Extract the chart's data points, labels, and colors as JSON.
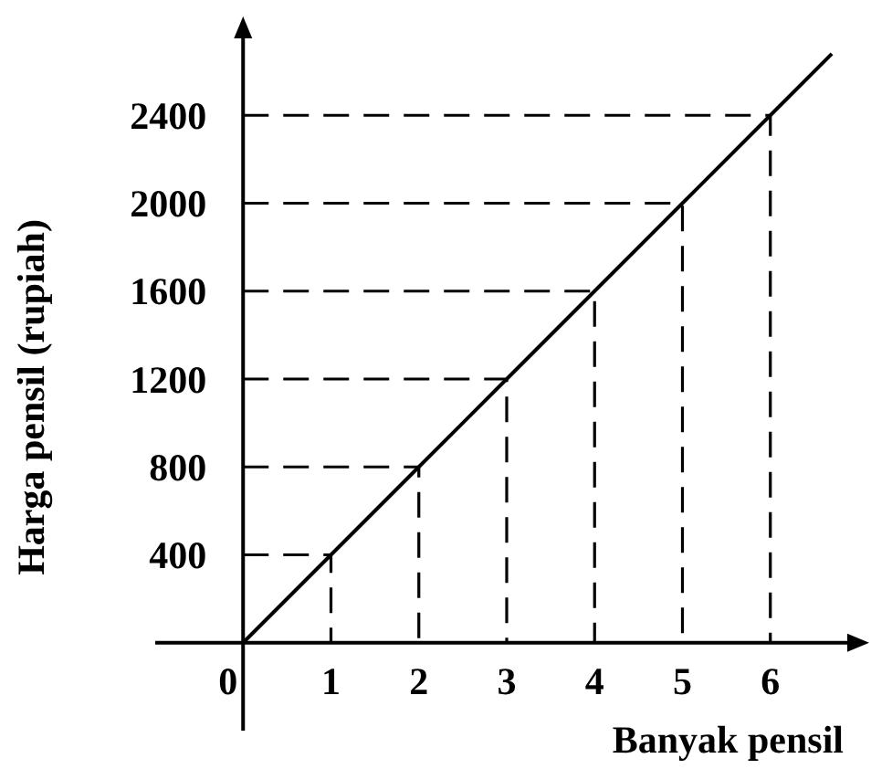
{
  "chart_data": {
    "type": "line",
    "xlabel": "Banyak pensil",
    "ylabel": "Harga pensil (rupiah)",
    "xlim": [
      -1,
      7
    ],
    "ylim": [
      -400,
      2800
    ],
    "xticks": [
      0,
      1,
      2,
      3,
      4,
      5,
      6
    ],
    "yticks": [
      400,
      800,
      1200,
      1600,
      2000,
      2400
    ],
    "marker": "none",
    "grid": false,
    "series": [
      {
        "color": "#000000",
        "x": [
          0,
          1,
          2,
          3,
          4,
          5,
          6,
          6.7
        ],
        "values": [
          0,
          400,
          800,
          1200,
          1600,
          2000,
          2400,
          2680
        ],
        "line_style": "solid"
      },
      {
        "color": "#000000",
        "x": [
          0,
          1,
          1
        ],
        "values": [
          400,
          400,
          0
        ],
        "line_style": "dashed"
      },
      {
        "color": "#000000",
        "x": [
          0,
          2,
          2
        ],
        "values": [
          800,
          800,
          0
        ],
        "line_style": "dashed"
      },
      {
        "color": "#000000",
        "x": [
          0,
          3,
          3
        ],
        "values": [
          1200,
          1200,
          0
        ],
        "line_style": "dashed"
      },
      {
        "color": "#000000",
        "x": [
          0,
          4,
          4
        ],
        "values": [
          1600,
          1600,
          0
        ],
        "line_style": "dashed"
      },
      {
        "color": "#000000",
        "x": [
          0,
          5,
          5
        ],
        "values": [
          2000,
          2000,
          0
        ],
        "line_style": "dashed"
      },
      {
        "color": "#000000",
        "x": [
          0,
          6,
          6
        ],
        "values": [
          2400,
          2400,
          0
        ],
        "line_style": "dashed"
      }
    ]
  }
}
